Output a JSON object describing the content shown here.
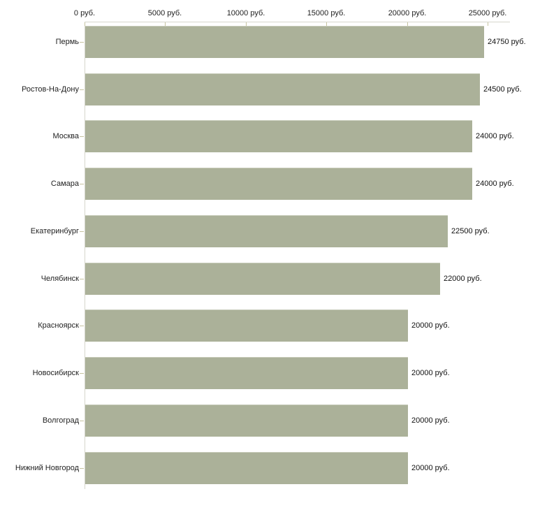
{
  "chart_data": {
    "type": "bar",
    "orientation": "horizontal",
    "title": "",
    "xlabel": "",
    "ylabel": "",
    "categories": [
      "Пермь",
      "Ростов-На-Дону",
      "Москва",
      "Самара",
      "Екатеринбург",
      "Челябинск",
      "Красноярск",
      "Новосибирск",
      "Волгоград",
      "Нижний Новгород"
    ],
    "values": [
      24750,
      24500,
      24000,
      24000,
      22500,
      22000,
      20000,
      20000,
      20000,
      20000
    ],
    "value_labels": [
      "24750 руб.",
      "24500 руб.",
      "24000 руб.",
      "24000 руб.",
      "22500 руб.",
      "22000 руб.",
      "20000 руб.",
      "20000 руб.",
      "20000 руб.",
      "20000 руб."
    ],
    "x_axis": {
      "position": "top",
      "min": 0,
      "max": 25000,
      "tick_values": [
        0,
        5000,
        10000,
        15000,
        20000,
        25000
      ],
      "tick_labels": [
        "0 руб.",
        "5000 руб.",
        "10000 руб.",
        "15000 руб.",
        "20000 руб.",
        "25000 руб."
      ]
    },
    "grid": false,
    "legend": "none",
    "colors": {
      "bar_fill": "#abb199",
      "bar_border": "#c7cbb9",
      "axis_line": "#d6d6cc",
      "tick_mark": "#c6c3a0",
      "text": "#1f1f1f"
    }
  }
}
